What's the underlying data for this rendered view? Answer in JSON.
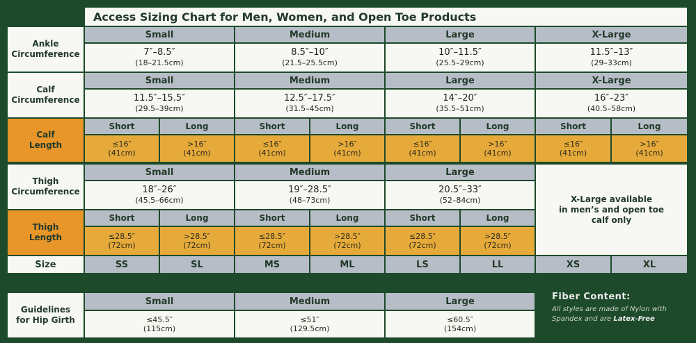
{
  "title": "Access Sizing Chart for Men, Women, and Open Toe Products",
  "ankle": {
    "label": [
      "Ankle",
      "Circumference"
    ],
    "headers": [
      "Small",
      "Medium",
      "Large",
      "X-Large"
    ],
    "values": [
      {
        "in": "7″–8.5″",
        "cm": "(18–21.5cm)"
      },
      {
        "in": "8.5″–10″",
        "cm": "(21.5–25.5cm)"
      },
      {
        "in": "10″–11.5″",
        "cm": "(25.5–29cm)"
      },
      {
        "in": "11.5″–13″",
        "cm": "(29–33cm)"
      }
    ]
  },
  "calf": {
    "label": [
      "Calf",
      "Circumference"
    ],
    "headers": [
      "Small",
      "Medium",
      "Large",
      "X-Large"
    ],
    "values": [
      {
        "in": "11.5″–15.5″",
        "cm": "(29.5–39cm)"
      },
      {
        "in": "12.5″–17.5″",
        "cm": "(31.5–45cm)"
      },
      {
        "in": "14″–20″",
        "cm": "(35.5–51cm)"
      },
      {
        "in": "16″–23″",
        "cm": "(40.5–58cm)"
      }
    ]
  },
  "calf_length": {
    "label": [
      "Calf",
      "Length"
    ],
    "headers": [
      "Short",
      "Long",
      "Short",
      "Long",
      "Short",
      "Long",
      "Short",
      "Long"
    ],
    "values": [
      {
        "in": "≤16″",
        "cm": "(41cm)"
      },
      {
        "in": ">16″",
        "cm": "(41cm)"
      },
      {
        "in": "≤16″",
        "cm": "(41cm)"
      },
      {
        "in": ">16″",
        "cm": "(41cm)"
      },
      {
        "in": "≤16″",
        "cm": "(41cm)"
      },
      {
        "in": ">16″",
        "cm": "(41cm)"
      },
      {
        "in": "≤16″",
        "cm": "(41cm)"
      },
      {
        "in": ">16″",
        "cm": "(41cm)"
      }
    ]
  },
  "thigh": {
    "label": [
      "Thigh",
      "Circumference"
    ],
    "headers": [
      "Small",
      "Medium",
      "Large"
    ],
    "values": [
      {
        "in": "18″–26″",
        "cm": "(45.5–66cm)"
      },
      {
        "in": "19″–28.5″",
        "cm": "(48–73cm)"
      },
      {
        "in": "20.5″–33″",
        "cm": "(52–84cm)"
      }
    ],
    "note": [
      "X-Large available",
      "in men’s and open toe",
      "calf only"
    ]
  },
  "thigh_length": {
    "label": [
      "Thigh",
      "Length"
    ],
    "headers": [
      "Short",
      "Long",
      "Short",
      "Long",
      "Short",
      "Long"
    ],
    "values": [
      {
        "in": "≤28.5″",
        "cm": "(72cm)"
      },
      {
        "in": ">28.5″",
        "cm": "(72cm)"
      },
      {
        "in": "≤28.5″",
        "cm": "(72cm)"
      },
      {
        "in": ">28.5″",
        "cm": "(72cm)"
      },
      {
        "in": "≤28.5″",
        "cm": "(72cm)"
      },
      {
        "in": ">28.5″",
        "cm": "(72cm)"
      }
    ]
  },
  "size": {
    "label": "Size",
    "codes": [
      "SS",
      "SL",
      "MS",
      "ML",
      "LS",
      "LL",
      "XS",
      "XL"
    ]
  },
  "hip": {
    "label": [
      "Guidelines",
      "for Hip Girth"
    ],
    "headers": [
      "Small",
      "Medium",
      "Large"
    ],
    "values": [
      {
        "in": "≤45.5″",
        "cm": "(115cm)"
      },
      {
        "in": "≤51″",
        "cm": "(129.5cm)"
      },
      {
        "in": "≤60.5″",
        "cm": "(154cm)"
      }
    ]
  },
  "fiber": {
    "heading": "Fiber Content:",
    "line1": "All styles are made of Nylon with",
    "line2_pre": "Spandex and are ",
    "line2_em": "Latex-Free"
  },
  "colors": {
    "background": "#1d4a2a",
    "header_gray": "#b7bdc7",
    "length_gold": "#e6aa3a",
    "label_orange": "#e8962a",
    "cell_white": "#f7f7f3"
  }
}
